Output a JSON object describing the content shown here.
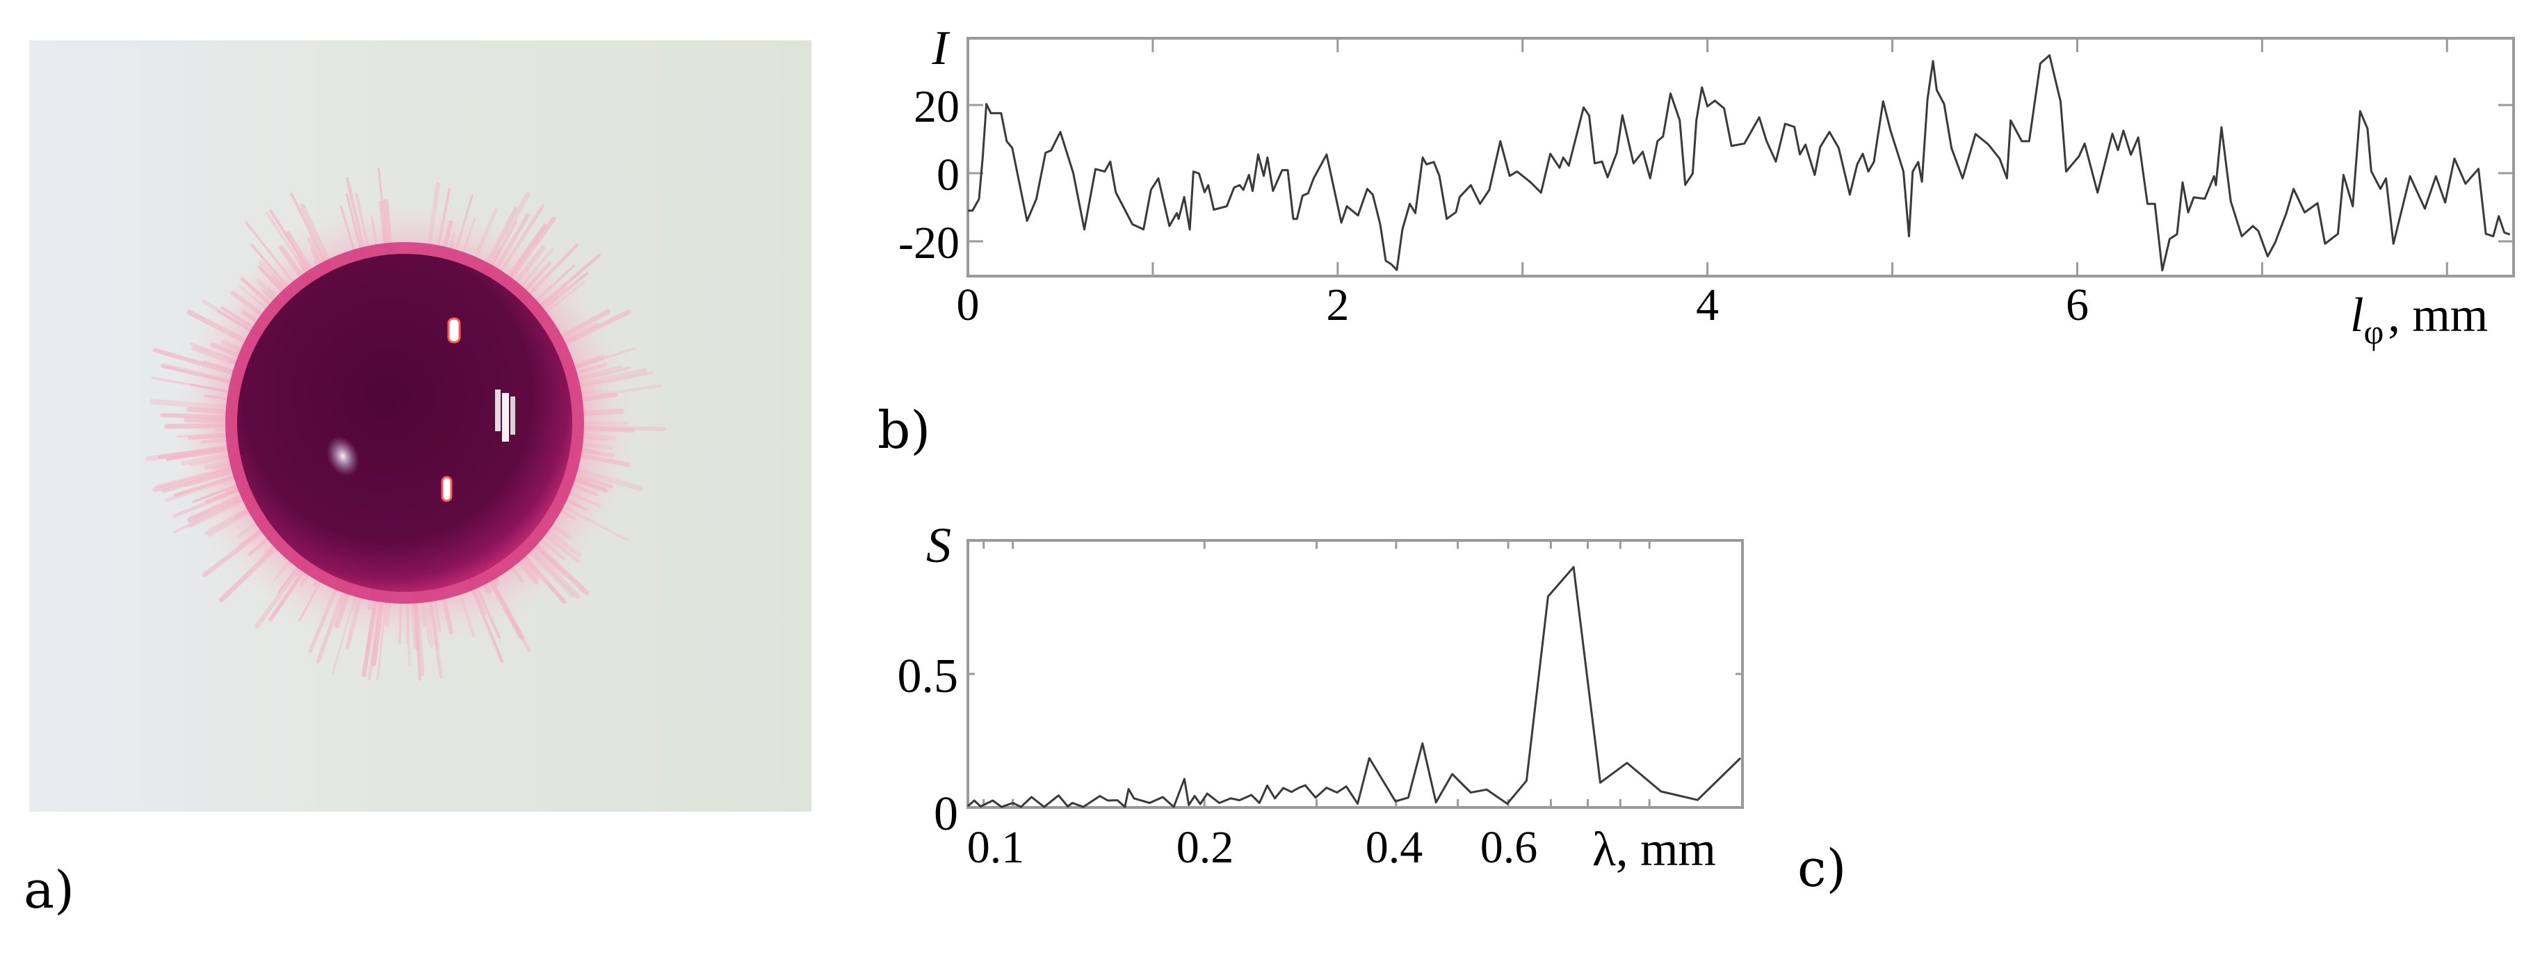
{
  "figure": {
    "panels": [
      {
        "id": "a",
        "label": "a)",
        "type": "photo",
        "description": "magenta liquid droplet with fringed rim on light substrate"
      },
      {
        "id": "b",
        "label": "b)",
        "type": "line"
      },
      {
        "id": "c",
        "label": "c)",
        "type": "line"
      }
    ]
  },
  "photo": {
    "background": "#e4e8e1",
    "background_left": "#e8ebf0",
    "fringe_color": "#f2b8c8",
    "rim_color": "#d0307a",
    "drop_color": "#5a0a3c",
    "drop_mid_color": "#7a1050",
    "highlight_color": "#ffffff",
    "highlight_red": "#ff6060"
  },
  "colors": {
    "line": "#3a3a3a",
    "frame": "#9a9a9a",
    "text": "#000000"
  },
  "chart_data": [
    {
      "panel": "b",
      "type": "line",
      "title": "",
      "ylabel": "I",
      "xlabel": "l_φ , mm",
      "xlabel_main": "l",
      "xlabel_sub": "φ",
      "xlabel_unit": ", mm",
      "xlim": [
        0,
        8.36
      ],
      "ylim": [
        -30.2,
        39.6
      ],
      "xticks": [
        0,
        1,
        2,
        3,
        4,
        5,
        6,
        7,
        8
      ],
      "xtick_labels": [
        "0",
        "",
        "2",
        "",
        "4",
        "",
        "6",
        "",
        ""
      ],
      "yticks": [
        20,
        0,
        -20
      ],
      "ytick_labels": [
        "20",
        "0",
        "-20"
      ],
      "grid": false,
      "legend": null,
      "x": [
        0.0,
        0.025,
        0.06,
        0.08,
        0.1,
        0.125,
        0.18,
        0.21,
        0.24,
        0.32,
        0.37,
        0.42,
        0.45,
        0.5,
        0.57,
        0.63,
        0.69,
        0.74,
        0.77,
        0.8,
        0.89,
        0.95,
        0.99,
        1.03,
        1.09,
        1.13,
        1.14,
        1.17,
        1.2,
        1.22,
        1.25,
        1.28,
        1.3,
        1.33,
        1.4,
        1.44,
        1.47,
        1.49,
        1.52,
        1.54,
        1.57,
        1.6,
        1.62,
        1.65,
        1.7,
        1.73,
        1.76,
        1.78,
        1.81,
        1.84,
        1.87,
        1.94,
        2.02,
        2.05,
        2.11,
        2.16,
        2.19,
        2.23,
        2.26,
        2.29,
        2.32,
        2.35,
        2.39,
        2.42,
        2.46,
        2.48,
        2.52,
        2.55,
        2.59,
        2.64,
        2.66,
        2.72,
        2.77,
        2.82,
        2.88,
        2.93,
        2.97,
        3.04,
        3.1,
        3.15,
        3.2,
        3.22,
        3.25,
        3.33,
        3.36,
        3.39,
        3.43,
        3.46,
        3.51,
        3.54,
        3.6,
        3.65,
        3.69,
        3.73,
        3.76,
        3.8,
        3.85,
        3.88,
        3.92,
        3.94,
        3.97,
        4.0,
        4.04,
        4.09,
        4.13,
        4.2,
        4.28,
        4.32,
        4.37,
        4.42,
        4.47,
        4.5,
        4.53,
        4.58,
        4.61,
        4.66,
        4.71,
        4.77,
        4.81,
        4.84,
        4.87,
        4.9,
        4.95,
        4.99,
        5.03,
        5.06,
        5.09,
        5.11,
        5.14,
        5.16,
        5.19,
        5.22,
        5.24,
        5.28,
        5.32,
        5.38,
        5.45,
        5.52,
        5.58,
        5.62,
        5.64,
        5.7,
        5.74,
        5.8,
        5.85,
        5.91,
        5.94,
        6.01,
        6.04,
        6.11,
        6.19,
        6.22,
        6.25,
        6.29,
        6.33,
        6.38,
        6.42,
        6.46,
        6.5,
        6.54,
        6.57,
        6.6,
        6.63,
        6.69,
        6.74,
        6.75,
        6.78,
        6.83,
        6.89,
        6.95,
        6.98,
        7.03,
        7.07,
        7.13,
        7.17,
        7.23,
        7.3,
        7.34,
        7.41,
        7.44,
        7.49,
        7.53,
        7.57,
        7.59,
        7.64,
        7.67,
        7.71,
        7.8,
        7.88,
        7.94,
        7.99,
        8.04,
        8.1,
        8.17,
        8.21,
        8.25,
        8.28,
        8.31,
        8.34
      ],
      "values": [
        -11,
        -11,
        -7.6,
        4.6,
        20.3,
        17.6,
        17.6,
        9.4,
        7.4,
        -14,
        -7.6,
        6,
        6.7,
        12.1,
        0,
        -16.5,
        1.2,
        0.5,
        3.4,
        -5.6,
        -15,
        -16.5,
        -4.9,
        -1.5,
        -15.5,
        -11.7,
        -13.4,
        -7,
        -16.5,
        0.5,
        -0.1,
        -5.6,
        -3.5,
        -10.7,
        -9.7,
        -4.2,
        -3.5,
        -4.9,
        -0.5,
        -5.2,
        5.5,
        -0.8,
        4.6,
        -5.2,
        0.9,
        0.9,
        -13.4,
        -13.4,
        -6.6,
        -5.9,
        -1.5,
        5.5,
        -14.5,
        -9.7,
        -12.4,
        -4.6,
        -6.3,
        -15,
        -25.7,
        -26.7,
        -28.4,
        -16.5,
        -9,
        -11.7,
        4.6,
        2.6,
        3.3,
        -0.8,
        -13.4,
        -11.4,
        -7,
        -3.5,
        -9,
        -4.9,
        9.4,
        -0.8,
        0.5,
        -2.5,
        -5.7,
        5.7,
        1.6,
        4.6,
        2.2,
        19.3,
        16.9,
        2.9,
        3.4,
        -1.2,
        6,
        17,
        2.9,
        6.3,
        -1.5,
        9.4,
        10.8,
        23.4,
        15.5,
        -3.4,
        -0.1,
        15.5,
        25.2,
        19.6,
        21.3,
        19,
        8,
        8.7,
        16.4,
        9.4,
        3.4,
        14.5,
        13.6,
        5.5,
        8.4,
        -0.5,
        7.7,
        12.1,
        7.4,
        -6.3,
        2.6,
        5.7,
        0.5,
        3.3,
        21.1,
        12.5,
        5.7,
        0.5,
        -18.5,
        0.5,
        3.3,
        -2.5,
        21.7,
        32.9,
        24.4,
        20.3,
        7.4,
        -1.5,
        11.5,
        8.4,
        4.3,
        -1.5,
        15.5,
        9.4,
        9.4,
        32.2,
        34.6,
        21,
        0.5,
        5,
        8.7,
        -5.7,
        11.6,
        6.8,
        12.5,
        5.4,
        10.5,
        -9,
        -9,
        -28.5,
        -19.3,
        -17.9,
        -2.7,
        -11.5,
        -7.1,
        -7.5,
        -0.9,
        -3.5,
        13.5,
        -8.2,
        -18.5,
        -15.5,
        -17,
        -24.4,
        -20.4,
        -11.9,
        -4.6,
        -11.5,
        -8.8,
        -20.7,
        -17.8,
        -0.5,
        -9.7,
        18.2,
        13.1,
        0.6,
        -4.6,
        -1.5,
        -20.7,
        -0.9,
        -10.4,
        -0.9,
        -8.6,
        4.3,
        -3.1,
        1.3,
        -17.8,
        -18.5,
        -12.6,
        -17.4,
        -18
      ]
    },
    {
      "panel": "c",
      "type": "line",
      "title": "",
      "ylabel": "S",
      "xlabel": "λ, mm",
      "xscale": "log",
      "xlim": [
        0.085,
        1.4
      ],
      "ylim": [
        0,
        1.0
      ],
      "xticks": [
        0.09,
        0.1,
        0.2,
        0.3,
        0.4,
        0.5,
        0.6,
        0.7,
        0.8,
        0.9,
        1.0
      ],
      "xtick_labels": [
        "",
        "0.1",
        "0.2",
        "",
        "0.4",
        "",
        "0.6",
        "",
        "",
        "",
        ""
      ],
      "yticks": [
        0,
        0.5
      ],
      "ytick_labels": [
        "0",
        "0.5"
      ],
      "grid": false,
      "legend": null,
      "x": [
        0.085,
        0.087,
        0.089,
        0.093,
        0.096,
        0.1,
        0.103,
        0.107,
        0.112,
        0.118,
        0.122,
        0.124,
        0.129,
        0.137,
        0.141,
        0.146,
        0.15,
        0.152,
        0.155,
        0.164,
        0.172,
        0.179,
        0.186,
        0.189,
        0.193,
        0.197,
        0.202,
        0.211,
        0.22,
        0.227,
        0.237,
        0.244,
        0.251,
        0.258,
        0.266,
        0.274,
        0.281,
        0.288,
        0.299,
        0.311,
        0.323,
        0.334,
        0.348,
        0.363,
        0.377,
        0.399,
        0.418,
        0.44,
        0.462,
        0.49,
        0.524,
        0.555,
        0.598,
        0.641,
        0.693,
        0.76,
        0.837,
        0.922,
        1.043,
        1.19,
        1.39
      ],
      "values": [
        0.005,
        0.026,
        0.004,
        0.026,
        0.002,
        0.017,
        0.002,
        0.039,
        0.002,
        0.045,
        0.004,
        0.017,
        0.002,
        0.043,
        0.026,
        0.027,
        0.002,
        0.069,
        0.034,
        0.017,
        0.039,
        0.002,
        0.107,
        0.009,
        0.043,
        0.013,
        0.052,
        0.017,
        0.034,
        0.027,
        0.047,
        0.017,
        0.082,
        0.034,
        0.073,
        0.058,
        0.073,
        0.083,
        0.037,
        0.074,
        0.056,
        0.079,
        0.014,
        0.185,
        0.12,
        0.023,
        0.037,
        0.24,
        0.019,
        0.125,
        0.056,
        0.067,
        0.014,
        0.1,
        0.79,
        0.9,
        0.093,
        0.167,
        0.06,
        0.028,
        0.185
      ]
    }
  ]
}
